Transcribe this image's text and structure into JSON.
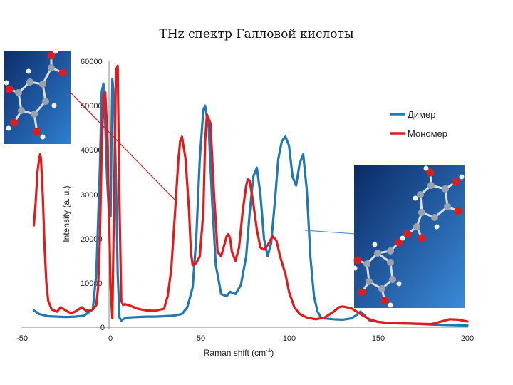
{
  "chart_data": {
    "type": "line",
    "title": "THz спектр Галловой кислоты",
    "xlabel": "Raman shift (cm",
    "xlabel_sup": "-1",
    "xlabel_end": ")",
    "ylabel": "Intensity (a. u.)",
    "xlim": [
      -50,
      200
    ],
    "ylim": [
      0,
      60000
    ],
    "xticks": [
      "-50",
      "0",
      "50",
      "100",
      "150",
      "200"
    ],
    "yticks": [
      "0",
      "10000",
      "20000",
      "30000",
      "40000",
      "50000",
      "60000"
    ],
    "legend_position": "top-right",
    "series": [
      {
        "name": "Димер",
        "color": "#1f77b4",
        "x": [
          -43,
          -40,
          -35,
          -30,
          -25,
          -20,
          -15,
          -10,
          -8,
          -6,
          -5,
          -4,
          -3,
          -2,
          -1,
          0,
          0.5,
          1,
          2,
          3,
          4,
          5,
          6,
          7,
          8,
          10,
          15,
          20,
          25,
          30,
          35,
          40,
          43,
          46,
          48,
          50,
          52,
          53,
          55,
          57,
          59,
          62,
          65,
          67,
          70,
          73,
          76,
          78,
          80,
          82,
          84,
          86,
          88,
          90,
          92,
          94,
          96,
          98,
          100,
          102,
          104,
          106,
          108,
          110,
          112,
          114,
          116,
          118,
          120,
          125,
          130,
          135,
          138,
          140,
          142,
          145,
          150,
          155,
          160,
          170,
          180,
          190,
          200
        ],
        "y": [
          3800,
          3000,
          2500,
          2400,
          2300,
          2400,
          2600,
          4000,
          12000,
          36000,
          53000,
          55000,
          46000,
          34000,
          26000,
          25000,
          43000,
          56000,
          51000,
          34000,
          12000,
          2200,
          1500,
          1800,
          2000,
          2200,
          2300,
          2400,
          2400,
          2500,
          2600,
          3000,
          4500,
          9000,
          20000,
          38000,
          49000,
          50000,
          45000,
          28000,
          14000,
          7500,
          7000,
          8000,
          7500,
          9500,
          16000,
          26000,
          34000,
          36000,
          30000,
          20000,
          16000,
          19000,
          28000,
          38000,
          42000,
          43000,
          41000,
          34000,
          32000,
          37000,
          39000,
          31000,
          16000,
          7000,
          3500,
          2200,
          2000,
          1800,
          1700,
          2000,
          2800,
          3500,
          2800,
          1600,
          1200,
          1000,
          900,
          800,
          600,
          500,
          400
        ]
      },
      {
        "name": "Мономер",
        "color": "#e31a1c",
        "x": [
          -43,
          -42,
          -41,
          -40,
          -39.5,
          -39,
          -38,
          -37,
          -36,
          -35,
          -33,
          -30,
          -28,
          -26,
          -24,
          -22,
          -20,
          -18,
          -16,
          -14,
          -12,
          -10,
          -8,
          -7,
          -6,
          -5,
          -4,
          -3,
          -2,
          -1,
          0,
          1,
          2,
          3,
          4,
          5,
          6,
          7,
          8,
          10,
          15,
          20,
          25,
          30,
          32,
          34,
          36,
          38,
          39,
          40,
          42,
          44,
          45,
          46,
          48,
          50,
          52,
          53,
          54,
          56,
          58,
          60,
          62,
          64,
          65,
          66,
          67,
          68,
          70,
          72,
          74,
          76,
          77,
          78,
          80,
          82,
          84,
          86,
          88,
          90,
          91,
          93,
          95,
          98,
          100,
          103,
          106,
          110,
          115,
          120,
          125,
          128,
          130,
          135,
          140,
          145,
          150,
          155,
          160,
          170,
          180,
          190,
          195,
          200
        ],
        "y": [
          23000,
          28000,
          35000,
          38000,
          39000,
          38000,
          30000,
          18000,
          10000,
          6000,
          4000,
          3500,
          4500,
          4000,
          3500,
          3200,
          3500,
          4000,
          4500,
          3800,
          3700,
          4000,
          5000,
          9000,
          20000,
          40000,
          52000,
          53000,
          45000,
          28000,
          9000,
          2000,
          30000,
          58000,
          59000,
          28000,
          6000,
          5000,
          5200,
          5000,
          4200,
          3800,
          3700,
          4200,
          7000,
          13000,
          25000,
          38000,
          42000,
          43000,
          38000,
          26000,
          17000,
          14000,
          14500,
          16000,
          26000,
          42000,
          48000,
          46000,
          30000,
          17000,
          16000,
          19000,
          20500,
          21000,
          20000,
          17000,
          15000,
          18000,
          26000,
          32000,
          33500,
          33000,
          28000,
          22000,
          18000,
          17500,
          18500,
          20000,
          20500,
          19500,
          16000,
          12000,
          8000,
          4500,
          3000,
          2200,
          1800,
          2200,
          3500,
          4500,
          4700,
          4300,
          3000,
          1800,
          1200,
          1000,
          900,
          800,
          700,
          1800,
          1700,
          1300
        ]
      }
    ]
  }
}
